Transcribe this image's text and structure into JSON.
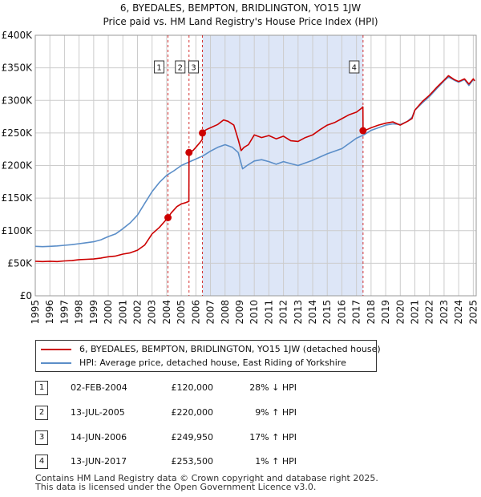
{
  "title_line1": "6, BYEDALES, BEMPTON, BRIDLINGTON, YO15 1JW",
  "title_line2": "Price paid vs. HM Land Registry's House Price Index (HPI)",
  "legend": {
    "property_label": "6, BYEDALES, BEMPTON, BRIDLINGTON, YO15 1JW (detached house)",
    "hpi_label": "HPI: Average price, detached house, East Riding of Yorkshire"
  },
  "colors": {
    "property": "#cc0000",
    "hpi": "#5b8ec8",
    "shade": "#dde6f7",
    "grid": "#cccccc"
  },
  "sales": [
    {
      "num": "1",
      "date": "02-FEB-2004",
      "price": "£120,000",
      "hpi": "28% ↓ HPI"
    },
    {
      "num": "2",
      "date": "13-JUL-2005",
      "price": "£220,000",
      "hpi": "9% ↑ HPI"
    },
    {
      "num": "3",
      "date": "14-JUN-2006",
      "price": "£249,950",
      "hpi": "17% ↑ HPI"
    },
    {
      "num": "4",
      "date": "13-JUN-2017",
      "price": "£253,500",
      "hpi": "1% ↑ HPI"
    }
  ],
  "footer": {
    "line1": "Contains HM Land Registry data © Crown copyright and database right 2025.",
    "line2": "This data is licensed under the Open Government Licence v3.0."
  },
  "chart_data": {
    "type": "line",
    "y_tick_labels": [
      "£0",
      "£50K",
      "£100K",
      "£150K",
      "£200K",
      "£250K",
      "£300K",
      "£350K",
      "£400K"
    ],
    "y_ticks": [
      0,
      50000,
      100000,
      150000,
      200000,
      250000,
      300000,
      350000,
      400000
    ],
    "ylim": [
      0,
      400000
    ],
    "x_ticks": [
      1995,
      1996,
      1997,
      1998,
      1999,
      2000,
      2001,
      2002,
      2003,
      2004,
      2005,
      2006,
      2007,
      2008,
      2009,
      2010,
      2011,
      2012,
      2013,
      2014,
      2015,
      2016,
      2017,
      2018,
      2019,
      2020,
      2021,
      2022,
      2023,
      2024,
      2025
    ],
    "x_tick_labels": [
      "1995",
      "1996",
      "1997",
      "1998",
      "1999",
      "2000",
      "2001",
      "2002",
      "2003",
      "2004",
      "2005",
      "2006",
      "2007",
      "2008",
      "2009",
      "2010",
      "2011",
      "2012",
      "2013",
      "2014",
      "2015",
      "2016",
      "2017",
      "2018",
      "2019",
      "2020",
      "2021",
      "2022",
      "2023",
      "2024",
      "2025"
    ],
    "xlim": [
      1995,
      2025.2
    ],
    "shaded_region": [
      2006.45,
      2017.45
    ],
    "markers": [
      {
        "label": "1",
        "x": 2004.09,
        "y": 120000
      },
      {
        "label": "2",
        "x": 2005.53,
        "y": 220000
      },
      {
        "label": "3",
        "x": 2006.45,
        "y": 249950
      },
      {
        "label": "4",
        "x": 2017.45,
        "y": 253500
      }
    ],
    "series": [
      {
        "name": "6, BYEDALES, BEMPTON, BRIDLINGTON, YO15 1JW (detached house)",
        "color": "#cc0000",
        "x": [
          1995,
          1995.5,
          1996,
          1996.5,
          1997,
          1997.5,
          1998,
          1998.5,
          1999,
          1999.5,
          2000,
          2000.5,
          2001,
          2001.5,
          2002,
          2002.5,
          2003,
          2003.5,
          2004.09,
          2004.3,
          2004.7,
          2005,
          2005.3,
          2005.52,
          2005.53,
          2005.8,
          2006,
          2006.3,
          2006.44,
          2006.45,
          2006.7,
          2007,
          2007.5,
          2007.9,
          2008.2,
          2008.6,
          2008.9,
          2009.1,
          2009.3,
          2009.6,
          2010,
          2010.5,
          2011,
          2011.5,
          2012,
          2012.5,
          2013,
          2013.5,
          2014,
          2014.5,
          2015,
          2015.5,
          2016,
          2016.5,
          2017,
          2017.3,
          2017.44,
          2017.45,
          2017.7,
          2018,
          2018.5,
          2019,
          2019.5,
          2020,
          2020.5,
          2020.8,
          2021,
          2021.5,
          2022,
          2022.5,
          2023,
          2023.3,
          2023.7,
          2024,
          2024.4,
          2024.7,
          2025,
          2025.1
        ],
        "y": [
          53000,
          52500,
          53000,
          52500,
          53500,
          54000,
          55500,
          56000,
          56500,
          58000,
          60000,
          61000,
          64000,
          66000,
          70000,
          78000,
          95000,
          105000,
          120000,
          127000,
          137000,
          141000,
          143000,
          145000,
          220000,
          223000,
          228000,
          236000,
          240000,
          249950,
          255000,
          258000,
          263000,
          270000,
          268000,
          262000,
          240000,
          223000,
          228000,
          232000,
          247000,
          243000,
          246000,
          241000,
          245000,
          238000,
          237000,
          243000,
          247000,
          255000,
          262000,
          266000,
          272000,
          278000,
          282000,
          287000,
          290000,
          253500,
          255000,
          258000,
          262000,
          265000,
          267000,
          262000,
          268000,
          272000,
          285000,
          298000,
          308000,
          320000,
          331000,
          338000,
          332000,
          329000,
          333000,
          325000,
          333000,
          330000
        ]
      },
      {
        "name": "HPI: Average price, detached house, East Riding of Yorkshire",
        "color": "#5b8ec8",
        "x": [
          1995,
          1995.5,
          1996,
          1996.5,
          1997,
          1997.5,
          1998,
          1998.5,
          1999,
          1999.5,
          2000,
          2000.5,
          2001,
          2001.5,
          2002,
          2002.5,
          2003,
          2003.5,
          2004,
          2004.5,
          2005,
          2005.5,
          2006,
          2006.5,
          2007,
          2007.5,
          2008,
          2008.5,
          2008.9,
          2009.2,
          2009.5,
          2010,
          2010.5,
          2011,
          2011.5,
          2012,
          2012.5,
          2013,
          2013.5,
          2014,
          2014.5,
          2015,
          2015.5,
          2016,
          2016.5,
          2017,
          2017.5,
          2018,
          2018.5,
          2019,
          2019.5,
          2020,
          2020.5,
          2020.8,
          2021,
          2021.5,
          2022,
          2022.5,
          2023,
          2023.3,
          2023.7,
          2024,
          2024.4,
          2024.7,
          2025,
          2025.1
        ],
        "y": [
          76000,
          75500,
          76000,
          76500,
          77500,
          78500,
          80000,
          81500,
          83000,
          86000,
          91000,
          95000,
          103000,
          112000,
          124000,
          142000,
          160000,
          174000,
          185000,
          192000,
          200000,
          205000,
          210000,
          215000,
          222000,
          228000,
          232000,
          228000,
          220000,
          195000,
          200000,
          207000,
          209000,
          206000,
          202000,
          206000,
          203000,
          200000,
          204000,
          208000,
          213000,
          218000,
          222000,
          226000,
          234000,
          242000,
          247000,
          254000,
          258000,
          262000,
          264000,
          263000,
          268000,
          274000,
          285000,
          296000,
          306000,
          318000,
          330000,
          336000,
          331000,
          328000,
          332000,
          323000,
          332000,
          330000
        ]
      }
    ]
  }
}
